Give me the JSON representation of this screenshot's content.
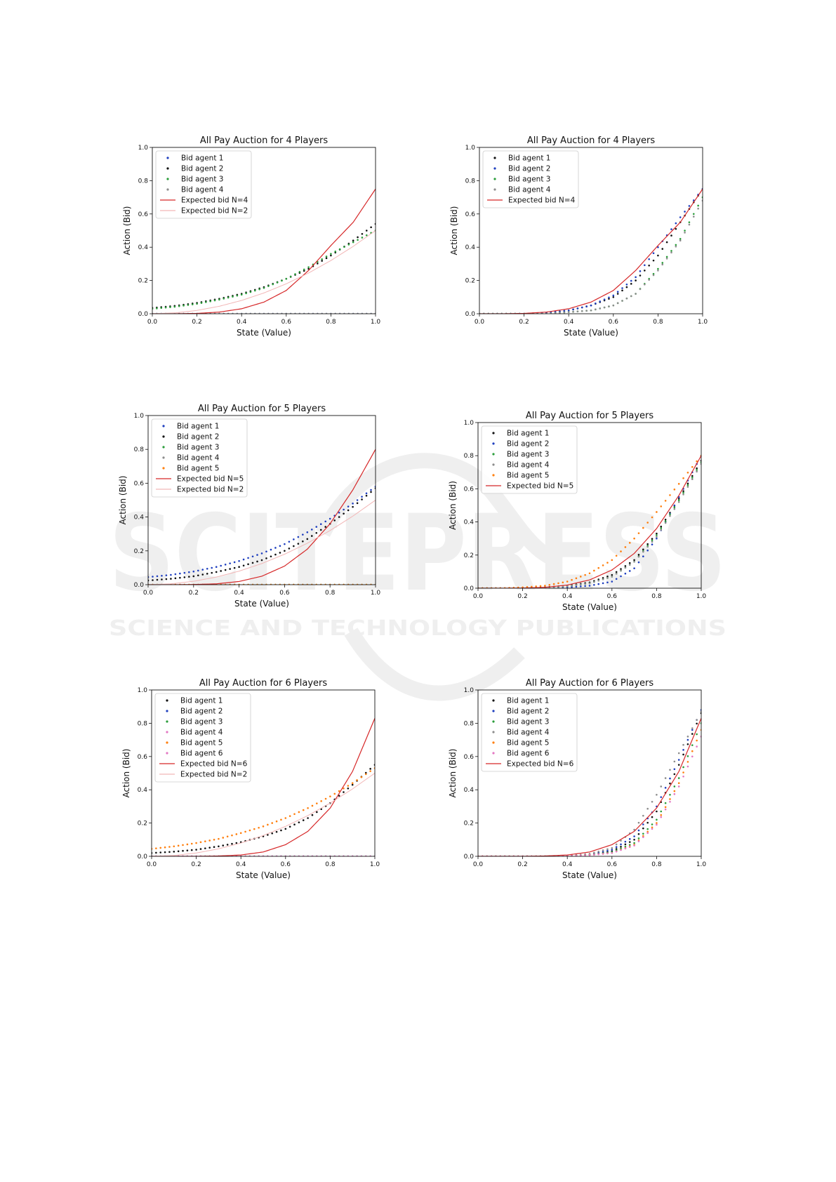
{
  "watermark": {
    "main": "SCITEPRESS",
    "sub": "SCIENCE AND TECHNOLOGY PUBLICATIONS"
  },
  "colors": {
    "agent_blue": "#1f3fbf",
    "agent_green": "#2a9d3a",
    "agent_orange": "#ff7f0e",
    "agent_black": "#111111",
    "agent_gray": "#8c8c8c",
    "agent_pink": "#e377c2",
    "expected": "#d62728",
    "expected_light": "#f2b6b6"
  },
  "chart_data": [
    {
      "type": "scatter",
      "title": "All Pay Auction for 4 Players",
      "xlabel": "State (Value)",
      "ylabel": "Action (Bid)",
      "xlim": [
        0,
        1
      ],
      "ylim": [
        0,
        1
      ],
      "xticks": [
        "0.0",
        "0.2",
        "0.4",
        "0.6",
        "0.8",
        "1.0"
      ],
      "yticks": [
        "0.0",
        "0.2",
        "0.4",
        "0.6",
        "0.8",
        "1.0"
      ],
      "legend_position": "top-left",
      "x": [
        0.0,
        0.1,
        0.2,
        0.3,
        0.4,
        0.5,
        0.6,
        0.7,
        0.8,
        0.9,
        1.0
      ],
      "series": [
        {
          "name": "Bid agent 1",
          "kind": "points",
          "color": "agent_blue",
          "values": [
            0.0,
            0.0,
            0.0,
            0.0,
            0.0,
            0.0,
            0.0,
            0.0,
            0.0,
            0.0,
            0.0
          ]
        },
        {
          "name": "Bid agent 2",
          "kind": "points",
          "color": "agent_black",
          "values": [
            0.035,
            0.047,
            0.065,
            0.09,
            0.12,
            0.16,
            0.21,
            0.27,
            0.35,
            0.44,
            0.54
          ]
        },
        {
          "name": "Bid agent 3",
          "kind": "points",
          "color": "agent_green",
          "values": [
            0.03,
            0.042,
            0.06,
            0.085,
            0.115,
            0.155,
            0.21,
            0.28,
            0.36,
            0.43,
            0.5
          ]
        },
        {
          "name": "Bid agent 4",
          "kind": "points",
          "color": "agent_gray",
          "values": [
            0.0,
            0.0,
            0.0,
            0.0,
            0.0,
            0.0,
            0.0,
            0.0,
            0.0,
            0.0,
            0.0
          ]
        },
        {
          "name": "Expected bid N=4",
          "kind": "line",
          "color": "expected",
          "values": [
            0.0,
            0.0001,
            0.002,
            0.01,
            0.03,
            0.07,
            0.14,
            0.26,
            0.41,
            0.55,
            0.75
          ]
        },
        {
          "name": "Expected bid N=2",
          "kind": "line",
          "color": "expected_light",
          "values": [
            0.0,
            0.005,
            0.02,
            0.045,
            0.08,
            0.125,
            0.18,
            0.245,
            0.32,
            0.405,
            0.5
          ]
        }
      ]
    },
    {
      "type": "scatter",
      "title": "All Pay Auction for 4 Players",
      "xlabel": "State (Value)",
      "ylabel": "Action (Bid)",
      "xlim": [
        0,
        1
      ],
      "ylim": [
        0,
        1
      ],
      "xticks": [
        "0.0",
        "0.2",
        "0.4",
        "0.6",
        "0.8",
        "1.0"
      ],
      "yticks": [
        "0.0",
        "0.2",
        "0.4",
        "0.6",
        "0.8",
        "1.0"
      ],
      "legend_position": "top-left",
      "x": [
        0.0,
        0.1,
        0.2,
        0.3,
        0.4,
        0.5,
        0.6,
        0.7,
        0.8,
        0.9,
        1.0
      ],
      "series": [
        {
          "name": "Bid agent 1",
          "kind": "points",
          "color": "agent_black",
          "values": [
            0.0,
            0.0,
            0.0,
            0.005,
            0.02,
            0.05,
            0.1,
            0.2,
            0.35,
            0.55,
            0.75
          ]
        },
        {
          "name": "Bid agent 2",
          "kind": "points",
          "color": "agent_blue",
          "values": [
            0.0,
            0.0,
            0.0,
            0.005,
            0.02,
            0.05,
            0.11,
            0.22,
            0.4,
            0.58,
            0.75
          ]
        },
        {
          "name": "Bid agent 3",
          "kind": "points",
          "color": "agent_green",
          "values": [
            0.0,
            0.0,
            0.0,
            0.0,
            0.01,
            0.02,
            0.05,
            0.12,
            0.27,
            0.45,
            0.7
          ]
        },
        {
          "name": "Bid agent 4",
          "kind": "points",
          "color": "agent_gray",
          "values": [
            0.0,
            0.0,
            0.0,
            0.0,
            0.01,
            0.02,
            0.05,
            0.12,
            0.26,
            0.44,
            0.68
          ]
        },
        {
          "name": "Expected bid N=4",
          "kind": "line",
          "color": "expected",
          "values": [
            0.0,
            0.0001,
            0.002,
            0.01,
            0.03,
            0.07,
            0.14,
            0.26,
            0.41,
            0.55,
            0.75
          ]
        }
      ]
    },
    {
      "type": "scatter",
      "title": "All Pay Auction for 5 Players",
      "xlabel": "State (Value)",
      "ylabel": "Action (Bid)",
      "xlim": [
        0,
        1
      ],
      "ylim": [
        0,
        1
      ],
      "xticks": [
        "0.0",
        "0.2",
        "0.4",
        "0.6",
        "0.8",
        "1.0"
      ],
      "yticks": [
        "0.0",
        "0.2",
        "0.4",
        "0.6",
        "0.8",
        "1.0"
      ],
      "legend_position": "top-left",
      "x": [
        0.0,
        0.1,
        0.2,
        0.3,
        0.4,
        0.5,
        0.6,
        0.7,
        0.8,
        0.9,
        1.0
      ],
      "series": [
        {
          "name": "Bid agent 1",
          "kind": "points",
          "color": "agent_blue",
          "values": [
            0.045,
            0.058,
            0.078,
            0.105,
            0.14,
            0.185,
            0.24,
            0.31,
            0.39,
            0.48,
            0.58
          ]
        },
        {
          "name": "Bid agent 2",
          "kind": "points",
          "color": "agent_black",
          "values": [
            0.025,
            0.035,
            0.05,
            0.075,
            0.105,
            0.145,
            0.2,
            0.27,
            0.36,
            0.46,
            0.57
          ]
        },
        {
          "name": "Bid agent 3",
          "kind": "points",
          "color": "agent_green",
          "values": [
            0.0,
            0.0,
            0.0,
            0.0,
            0.0,
            0.0,
            0.0,
            0.0,
            0.0,
            0.0,
            0.0
          ]
        },
        {
          "name": "Bid agent 4",
          "kind": "points",
          "color": "agent_gray",
          "values": [
            0.0,
            0.0,
            0.0,
            0.0,
            0.0,
            0.0,
            0.0,
            0.0,
            0.0,
            0.0,
            0.0
          ]
        },
        {
          "name": "Bid agent 5",
          "kind": "points",
          "color": "agent_orange",
          "values": [
            0.0,
            0.0,
            0.0,
            0.0,
            0.0,
            0.0,
            0.0,
            0.0,
            0.0,
            0.0,
            0.0
          ]
        },
        {
          "name": "Expected bid N=5",
          "kind": "line",
          "color": "expected",
          "values": [
            0.0,
            0.0,
            0.001,
            0.005,
            0.019,
            0.05,
            0.11,
            0.21,
            0.36,
            0.56,
            0.8
          ]
        },
        {
          "name": "Expected bid N=2",
          "kind": "line",
          "color": "expected_light",
          "values": [
            0.0,
            0.005,
            0.02,
            0.045,
            0.08,
            0.125,
            0.18,
            0.245,
            0.32,
            0.405,
            0.5
          ]
        }
      ]
    },
    {
      "type": "scatter",
      "title": "All Pay Auction for 5 Players",
      "xlabel": "State (Value)",
      "ylabel": "Action (Bid)",
      "xlim": [
        0,
        1
      ],
      "ylim": [
        0,
        1
      ],
      "xticks": [
        "0.0",
        "0.2",
        "0.4",
        "0.6",
        "0.8",
        "1.0"
      ],
      "yticks": [
        "0.0",
        "0.2",
        "0.4",
        "0.6",
        "0.8",
        "1.0"
      ],
      "legend_position": "top-left",
      "x": [
        0.0,
        0.1,
        0.2,
        0.3,
        0.4,
        0.5,
        0.6,
        0.7,
        0.8,
        0.9,
        1.0
      ],
      "series": [
        {
          "name": "Bid agent 1",
          "kind": "points",
          "color": "agent_black",
          "values": [
            0.0,
            0.0,
            0.0,
            0.005,
            0.015,
            0.035,
            0.08,
            0.17,
            0.33,
            0.54,
            0.77
          ]
        },
        {
          "name": "Bid agent 2",
          "kind": "points",
          "color": "agent_blue",
          "values": [
            0.0,
            0.0,
            0.0,
            0.0,
            0.005,
            0.015,
            0.04,
            0.12,
            0.3,
            0.55,
            0.8
          ]
        },
        {
          "name": "Bid agent 3",
          "kind": "points",
          "color": "agent_green",
          "values": [
            0.0,
            0.0,
            0.0,
            0.003,
            0.012,
            0.03,
            0.07,
            0.16,
            0.32,
            0.53,
            0.76
          ]
        },
        {
          "name": "Bid agent 4",
          "kind": "points",
          "color": "agent_gray",
          "values": [
            0.0,
            0.0,
            0.0,
            0.003,
            0.012,
            0.03,
            0.07,
            0.16,
            0.31,
            0.52,
            0.75
          ]
        },
        {
          "name": "Bid agent 5",
          "kind": "points",
          "color": "agent_orange",
          "values": [
            0.0,
            0.0,
            0.005,
            0.015,
            0.04,
            0.09,
            0.17,
            0.3,
            0.46,
            0.63,
            0.8
          ]
        },
        {
          "name": "Expected bid N=5",
          "kind": "line",
          "color": "expected",
          "values": [
            0.0,
            0.0,
            0.001,
            0.005,
            0.019,
            0.05,
            0.11,
            0.21,
            0.36,
            0.56,
            0.8
          ]
        }
      ]
    },
    {
      "type": "scatter",
      "title": "All Pay Auction for 6 Players",
      "xlabel": "State (Value)",
      "ylabel": "Action (Bid)",
      "xlim": [
        0,
        1
      ],
      "ylim": [
        0,
        1
      ],
      "xticks": [
        "0.0",
        "0.2",
        "0.4",
        "0.6",
        "0.8",
        "1.0"
      ],
      "yticks": [
        "0.0",
        "0.2",
        "0.4",
        "0.6",
        "0.8",
        "1.0"
      ],
      "legend_position": "top-left",
      "x": [
        0.0,
        0.1,
        0.2,
        0.3,
        0.4,
        0.5,
        0.6,
        0.7,
        0.8,
        0.9,
        1.0
      ],
      "series": [
        {
          "name": "Bid agent 1",
          "kind": "points",
          "color": "agent_black",
          "values": [
            0.02,
            0.028,
            0.04,
            0.06,
            0.085,
            0.12,
            0.165,
            0.23,
            0.32,
            0.43,
            0.55
          ]
        },
        {
          "name": "Bid agent 2",
          "kind": "points",
          "color": "agent_blue",
          "values": [
            0.0,
            0.0,
            0.0,
            0.0,
            0.0,
            0.0,
            0.0,
            0.0,
            0.0,
            0.0,
            0.0
          ]
        },
        {
          "name": "Bid agent 3",
          "kind": "points",
          "color": "agent_green",
          "values": [
            0.0,
            0.0,
            0.0,
            0.0,
            0.0,
            0.0,
            0.0,
            0.0,
            0.0,
            0.0,
            0.0
          ]
        },
        {
          "name": "Bid agent 4",
          "kind": "points",
          "color": "agent_pink",
          "values": [
            0.0,
            0.0,
            0.0,
            0.0,
            0.0,
            0.0,
            0.0,
            0.0,
            0.0,
            0.0,
            0.0
          ]
        },
        {
          "name": "Bid agent 5",
          "kind": "points",
          "color": "agent_orange",
          "values": [
            0.045,
            0.06,
            0.08,
            0.105,
            0.14,
            0.18,
            0.23,
            0.29,
            0.36,
            0.44,
            0.53
          ]
        },
        {
          "name": "Bid agent 6",
          "kind": "points",
          "color": "agent_pink",
          "values": [
            0.0,
            0.0,
            0.0,
            0.0,
            0.0,
            0.0,
            0.0,
            0.0,
            0.0,
            0.0,
            0.0
          ]
        },
        {
          "name": "Expected bid N=6",
          "kind": "line",
          "color": "expected",
          "values": [
            0.0,
            0.0,
            0.0,
            0.002,
            0.008,
            0.026,
            0.07,
            0.15,
            0.29,
            0.51,
            0.83
          ]
        },
        {
          "name": "Expected bid N=2",
          "kind": "line",
          "color": "expected_light",
          "values": [
            0.0,
            0.005,
            0.02,
            0.045,
            0.08,
            0.125,
            0.18,
            0.245,
            0.32,
            0.405,
            0.5
          ]
        }
      ]
    },
    {
      "type": "scatter",
      "title": "All Pay Auction for 6 Players",
      "xlabel": "State (Value)",
      "ylabel": "Action (Bid)",
      "xlim": [
        0,
        1
      ],
      "ylim": [
        0,
        1
      ],
      "xticks": [
        "0.0",
        "0.2",
        "0.4",
        "0.6",
        "0.8",
        "1.0"
      ],
      "yticks": [
        "0.0",
        "0.2",
        "0.4",
        "0.6",
        "0.8",
        "1.0"
      ],
      "legend_position": "top-left",
      "x": [
        0.0,
        0.1,
        0.2,
        0.3,
        0.4,
        0.5,
        0.6,
        0.7,
        0.8,
        0.9,
        1.0
      ],
      "series": [
        {
          "name": "Bid agent 1",
          "kind": "points",
          "color": "agent_black",
          "values": [
            0.0,
            0.0,
            0.0,
            0.0,
            0.002,
            0.01,
            0.03,
            0.1,
            0.27,
            0.55,
            0.86
          ]
        },
        {
          "name": "Bid agent 2",
          "kind": "points",
          "color": "agent_blue",
          "values": [
            0.0,
            0.0,
            0.0,
            0.0,
            0.003,
            0.012,
            0.04,
            0.12,
            0.3,
            0.58,
            0.88
          ]
        },
        {
          "name": "Bid agent 3",
          "kind": "points",
          "color": "agent_green",
          "values": [
            0.0,
            0.0,
            0.0,
            0.0,
            0.002,
            0.008,
            0.025,
            0.08,
            0.22,
            0.47,
            0.8
          ]
        },
        {
          "name": "Bid agent 4",
          "kind": "points",
          "color": "agent_gray",
          "values": [
            0.0,
            0.0,
            0.0,
            0.0,
            0.004,
            0.015,
            0.05,
            0.16,
            0.37,
            0.62,
            0.87
          ]
        },
        {
          "name": "Bid agent 5",
          "kind": "points",
          "color": "agent_orange",
          "values": [
            0.0,
            0.0,
            0.0,
            0.0,
            0.002,
            0.008,
            0.02,
            0.07,
            0.2,
            0.44,
            0.76
          ]
        },
        {
          "name": "Bid agent 6",
          "kind": "points",
          "color": "agent_pink",
          "values": [
            0.0,
            0.0,
            0.0,
            0.0,
            0.002,
            0.007,
            0.02,
            0.065,
            0.19,
            0.42,
            0.72
          ]
        },
        {
          "name": "Expected bid N=6",
          "kind": "line",
          "color": "expected",
          "values": [
            0.0,
            0.0,
            0.0,
            0.002,
            0.008,
            0.026,
            0.07,
            0.15,
            0.29,
            0.51,
            0.83
          ]
        }
      ]
    }
  ]
}
